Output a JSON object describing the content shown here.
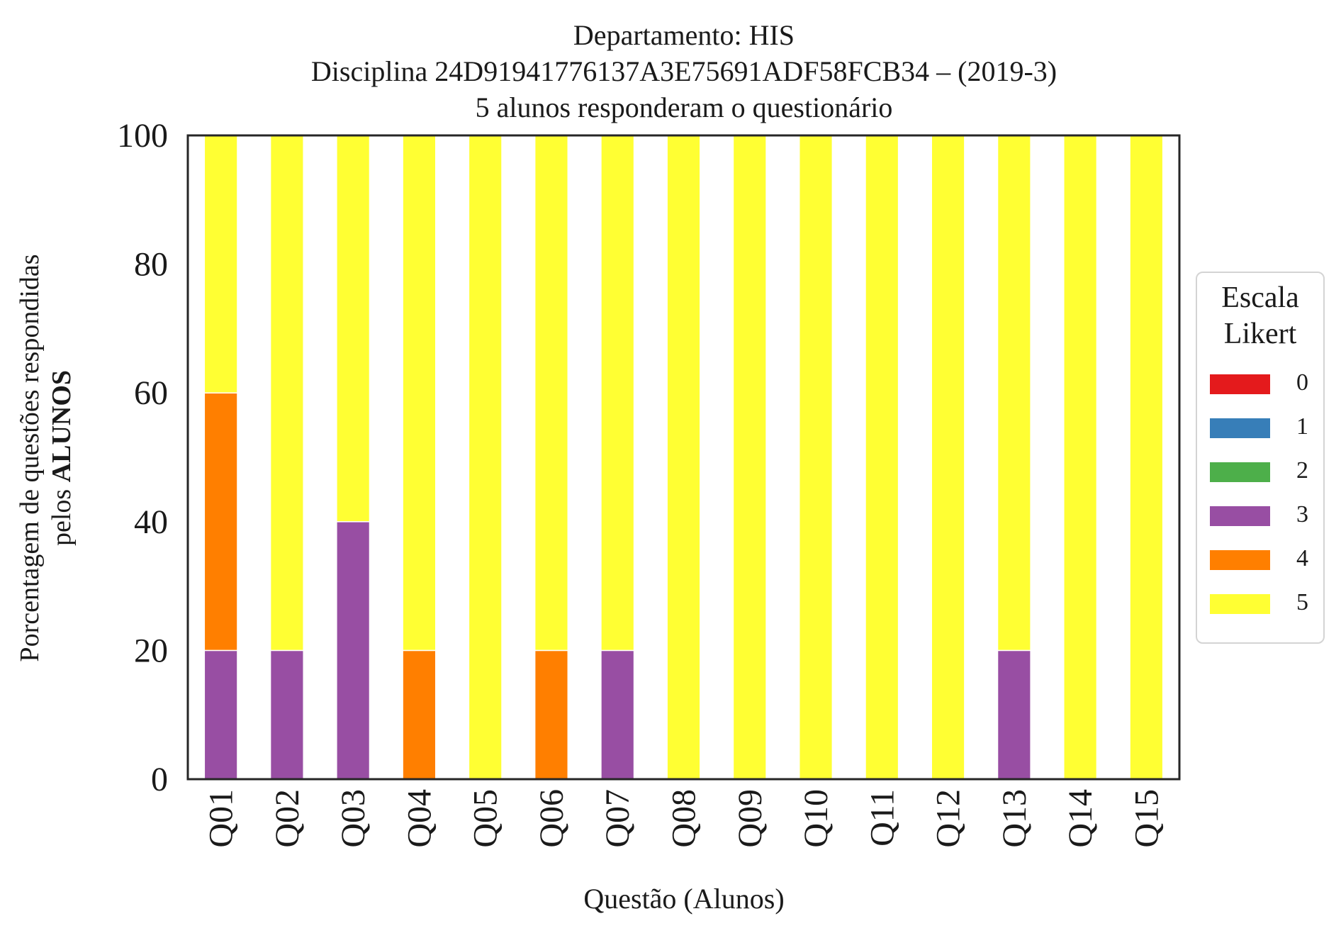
{
  "chart_data": {
    "type": "bar",
    "stacked": true,
    "title_lines": [
      "Departamento: HIS",
      "Disciplina 24D91941776137A3E75691ADF58FCB34 – (2019-3)",
      "5 alunos responderam o questionário"
    ],
    "ylabel_line1": "Porcentagem de questões respondidas",
    "ylabel_line2_prefix": "pelos ",
    "ylabel_line2_bold": "ALUNOS",
    "xlabel": "Questão (Alunos)",
    "categories": [
      "Q01",
      "Q02",
      "Q03",
      "Q04",
      "Q05",
      "Q06",
      "Q07",
      "Q08",
      "Q09",
      "Q10",
      "Q11",
      "Q12",
      "Q13",
      "Q14",
      "Q15"
    ],
    "ylim": [
      0,
      100
    ],
    "yticks": [
      0,
      20,
      40,
      60,
      80,
      100
    ],
    "grid": false,
    "legend": {
      "title_lines": [
        "Escala",
        "Likert"
      ],
      "placement": "center-right outside"
    },
    "series": [
      {
        "name": "0",
        "color": "#e41a1c",
        "values": [
          0,
          0,
          0,
          0,
          0,
          0,
          0,
          0,
          0,
          0,
          0,
          0,
          0,
          0,
          0
        ]
      },
      {
        "name": "1",
        "color": "#377eb8",
        "values": [
          0,
          0,
          0,
          0,
          0,
          0,
          0,
          0,
          0,
          0,
          0,
          0,
          0,
          0,
          0
        ]
      },
      {
        "name": "2",
        "color": "#4daf4a",
        "values": [
          0,
          0,
          0,
          0,
          0,
          0,
          0,
          0,
          0,
          0,
          0,
          0,
          0,
          0,
          0
        ]
      },
      {
        "name": "3",
        "color": "#984ea3",
        "values": [
          20,
          20,
          40,
          0,
          0,
          0,
          20,
          0,
          0,
          0,
          0,
          0,
          20,
          0,
          0
        ]
      },
      {
        "name": "4",
        "color": "#ff7f00",
        "values": [
          40,
          0,
          0,
          20,
          0,
          20,
          0,
          0,
          0,
          0,
          0,
          0,
          0,
          0,
          0
        ]
      },
      {
        "name": "5",
        "color": "#ffff33",
        "values": [
          40,
          80,
          60,
          80,
          100,
          80,
          80,
          100,
          100,
          100,
          100,
          100,
          80,
          100,
          100
        ]
      }
    ]
  }
}
